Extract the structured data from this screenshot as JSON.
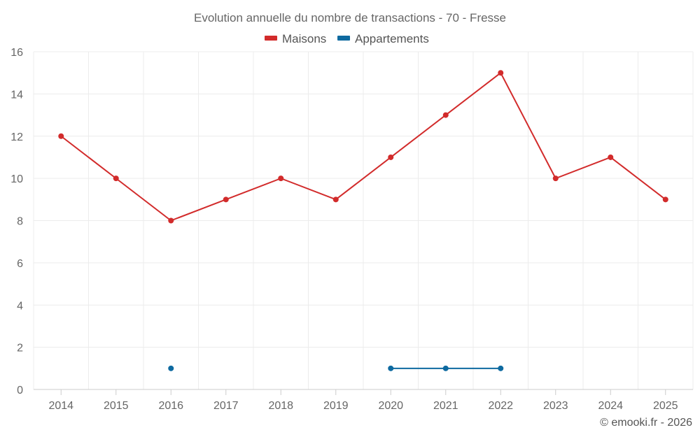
{
  "chart_data": {
    "type": "line",
    "title": "Evolution annuelle du nombre de transactions - 70 - Fresse",
    "categories": [
      "2014",
      "2015",
      "2016",
      "2017",
      "2018",
      "2019",
      "2020",
      "2021",
      "2022",
      "2023",
      "2024",
      "2025"
    ],
    "ylim": [
      0,
      16
    ],
    "yticks": [
      0,
      2,
      4,
      6,
      8,
      10,
      12,
      14,
      16
    ],
    "grid": true,
    "legend_position": "top-center",
    "series": [
      {
        "name": "Maisons",
        "color": "#d22b2b",
        "values": [
          12,
          10,
          8,
          9,
          10,
          9,
          11,
          13,
          15,
          10,
          11,
          9
        ]
      },
      {
        "name": "Appartements",
        "color": "#0e6aa0",
        "values": [
          null,
          null,
          1,
          null,
          null,
          null,
          1,
          1,
          1,
          null,
          null,
          null
        ]
      }
    ],
    "xlabel": "",
    "ylabel": ""
  },
  "credit": "© emooki.fr - 2026"
}
